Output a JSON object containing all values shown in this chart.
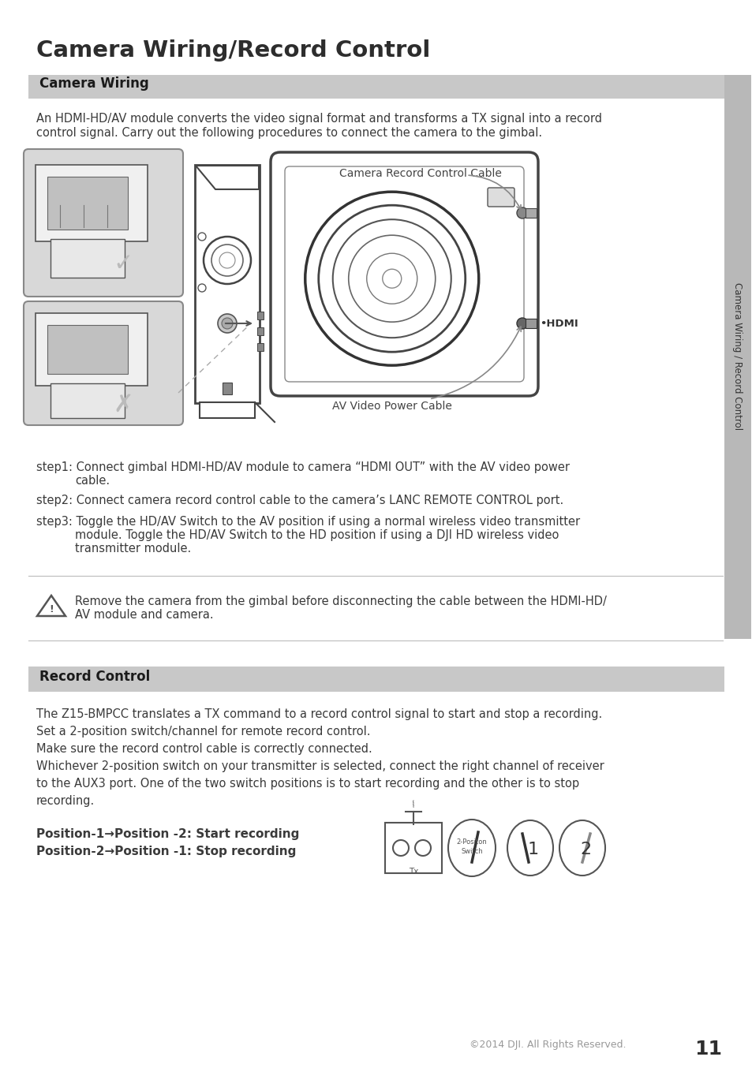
{
  "page_title": "Camera Wiring/Record Control",
  "section1_title": "Camera Wiring",
  "section1_bg": "#c8c8c8",
  "section2_title": "Record Control",
  "section2_bg": "#c8c8c8",
  "body_text_color": "#3a3a3a",
  "title_color": "#2d2d2d",
  "background_color": "#ffffff",
  "section1_intro_line1": "An HDMI-HD/AV module converts the video signal format and transforms a TX signal into a record",
  "section1_intro_line2": "control signal. Carry out the following procedures to connect the camera to the gimbal.",
  "camera_record_cable_label": "Camera Record Control Cable",
  "av_video_cable_label": "AV Video Power Cable",
  "hdmi_label": "•HDMI",
  "step1_line1": "step1: Connect gimbal HDMI-HD/AV module to camera “HDMI OUT” with the AV video power",
  "step1_line2": "        cable.",
  "step2_line1": "step2: Connect camera record control cable to the camera’s LANC REMOTE CONTROL port.",
  "step3_line1": "step3: Toggle the HD/AV Switch to the AV position if using a normal wireless video transmitter",
  "step3_line2": "        module. Toggle the HD/AV Switch to the HD position if using a DJI HD wireless video",
  "step3_line3": "        transmitter module.",
  "warning_line1": "Remove the camera from the gimbal before disconnecting the cable between the HDMI-HD/",
  "warning_line2": "AV module and camera.",
  "sec2_line1": "The Z15-BMPCC translates a TX command to a record control signal to start and stop a recording.",
  "sec2_line2": "Set a 2-position switch/channel for remote record control.",
  "sec2_line3": "Make sure the record control cable is correctly connected.",
  "sec2_line4": "Whichever 2-position switch on your transmitter is selected, connect the right channel of receiver",
  "sec2_line5": "to the AUX3 port. One of the two switch positions is to start recording and the other is to stop",
  "sec2_line6": "recording.",
  "pos_line1": "Position-1→Position -2: Start recording",
  "pos_line2": "Position-2→Position -1: Stop recording",
  "footer_text": "©2014 DJI. All Rights Reserved.",
  "page_number": "11",
  "sidebar_text": "Camera Wiring / Record Control",
  "sidebar_bg": "#b8b8b8"
}
